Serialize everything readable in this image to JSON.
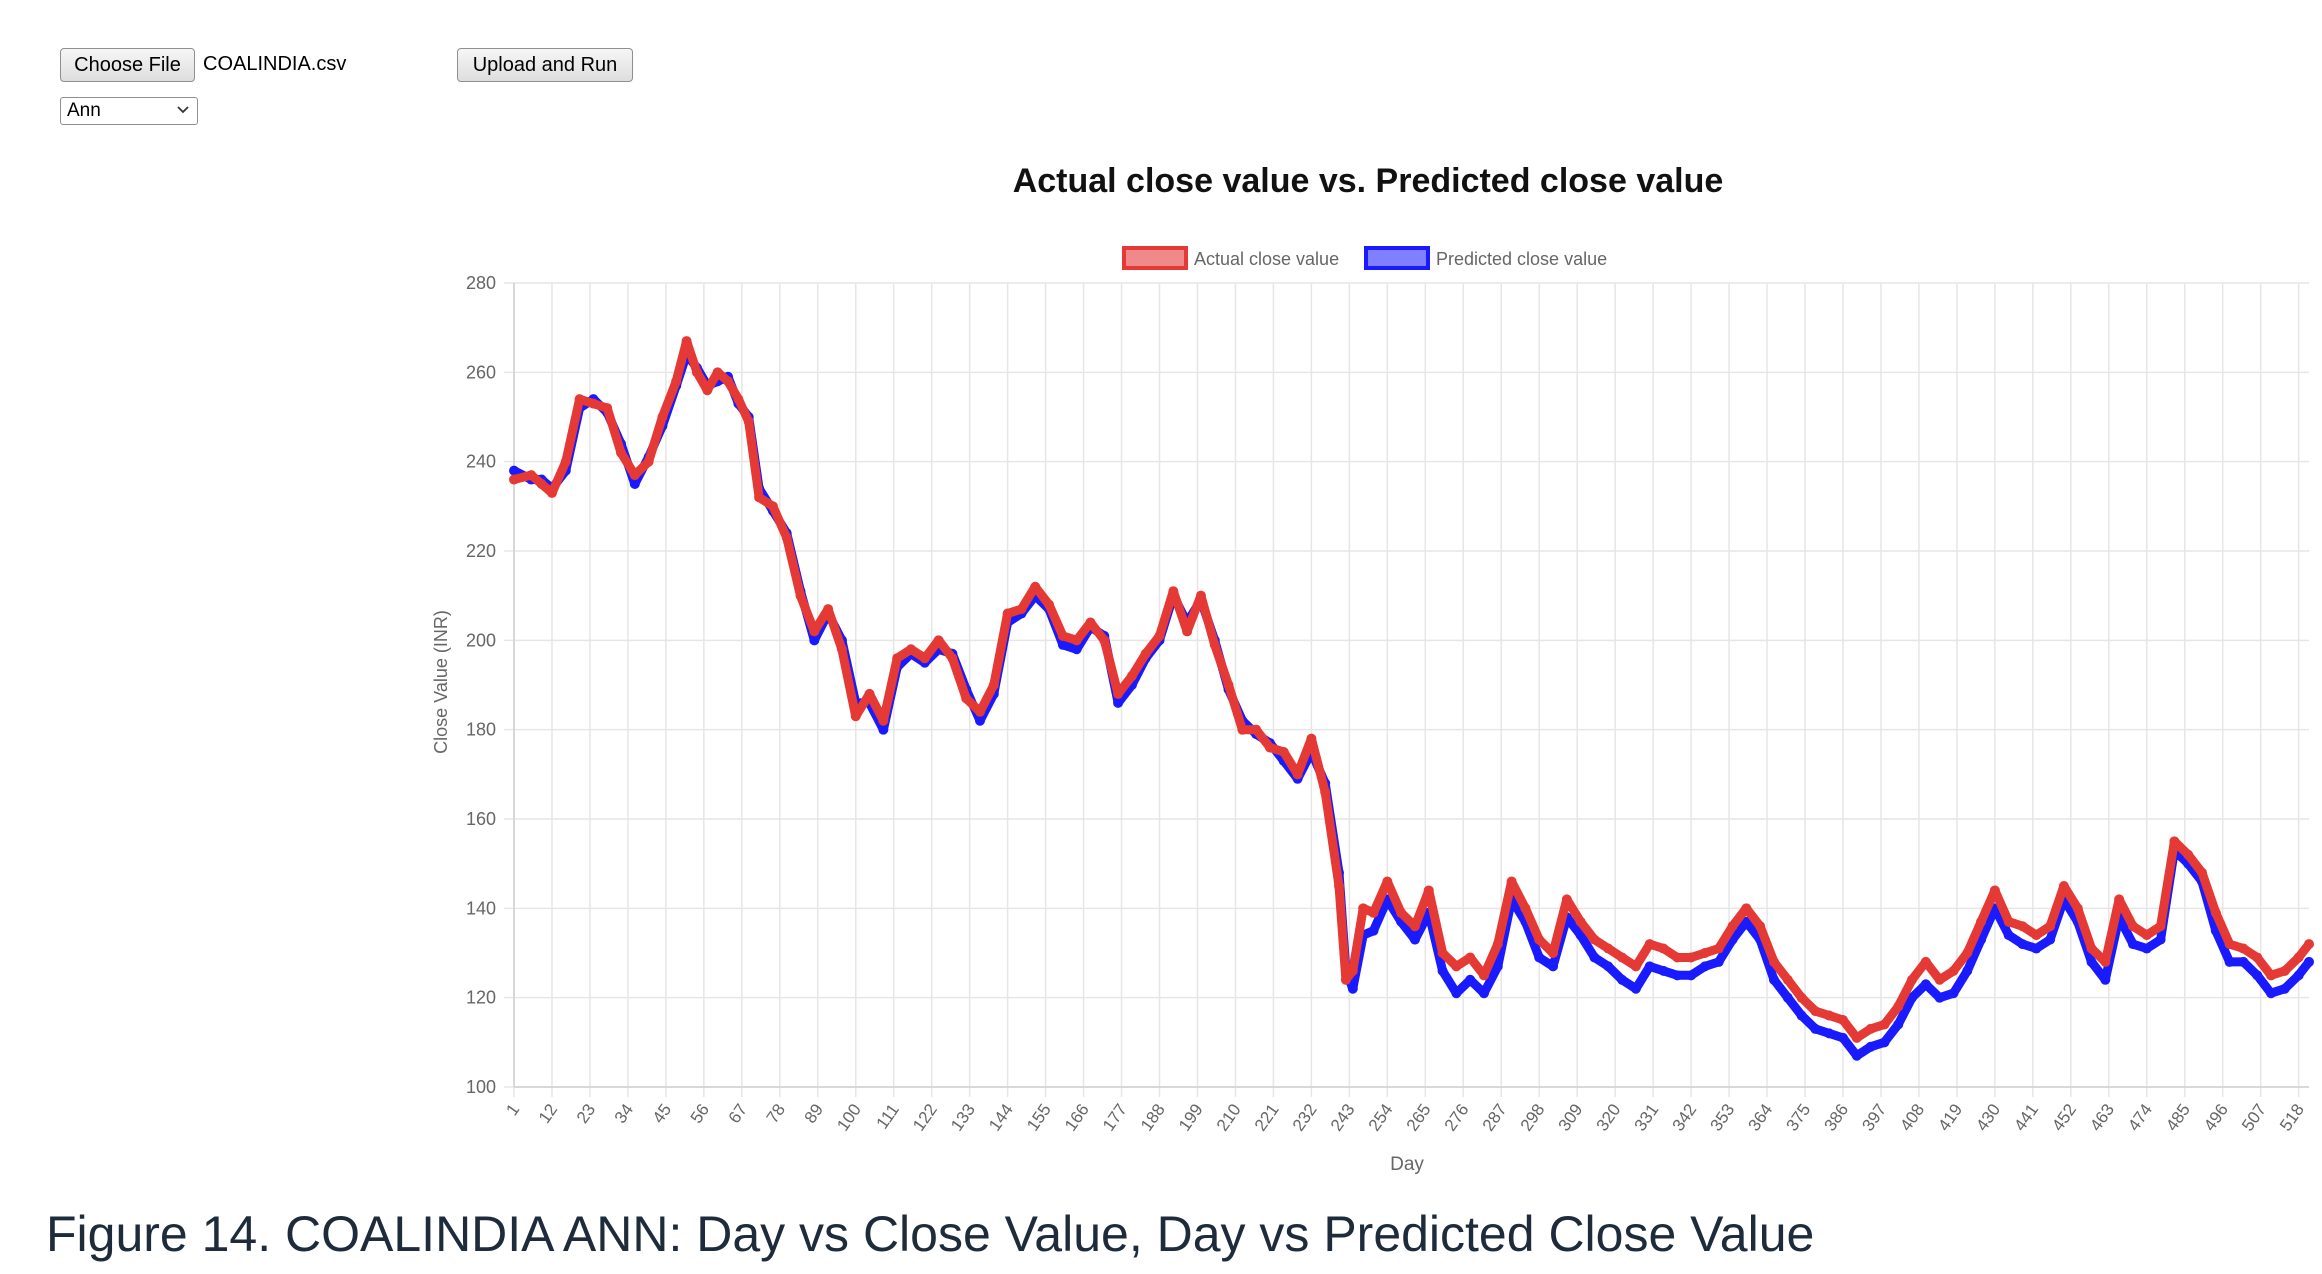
{
  "controls": {
    "choose_file_label": "Choose File",
    "file_name": "COALINDIA.csv",
    "upload_label": "Upload and Run",
    "model_selected": "Ann"
  },
  "caption": "Figure 14. COALINDIA ANN: Day vs Close Value, Day vs Predicted Close Value",
  "colors": {
    "actual_line": "#e53935",
    "actual_fill": "#f08a8a",
    "predicted_line": "#1a1aff",
    "predicted_fill": "#7f7fff",
    "grid": "#e6e6e6",
    "axis_text": "#666666"
  },
  "chart_data": {
    "type": "line",
    "title": "Actual close value vs. Predicted close value",
    "xlabel": "Day",
    "ylabel": "Close Value (INR)",
    "ylim": [
      100,
      280
    ],
    "yticks": [
      100,
      120,
      140,
      160,
      180,
      200,
      220,
      240,
      260,
      280
    ],
    "xlim": [
      1,
      521
    ],
    "xticks": [
      1,
      12,
      23,
      34,
      45,
      56,
      67,
      78,
      89,
      100,
      111,
      122,
      133,
      144,
      155,
      166,
      177,
      188,
      199,
      210,
      221,
      232,
      243,
      254,
      265,
      276,
      287,
      298,
      309,
      320,
      331,
      342,
      353,
      364,
      375,
      386,
      397,
      408,
      419,
      430,
      441,
      452,
      463,
      474,
      485,
      496,
      507,
      518
    ],
    "grid": true,
    "legend_position": "top-center",
    "series": [
      {
        "name": "Actual close value",
        "x": [
          1,
          6,
          9,
          12,
          16,
          20,
          24,
          28,
          32,
          36,
          40,
          44,
          48,
          51,
          54,
          57,
          60,
          63,
          66,
          69,
          72,
          76,
          80,
          84,
          88,
          92,
          96,
          100,
          104,
          108,
          112,
          116,
          120,
          124,
          128,
          132,
          136,
          140,
          144,
          148,
          152,
          156,
          160,
          164,
          168,
          172,
          176,
          180,
          184,
          188,
          192,
          196,
          200,
          204,
          208,
          212,
          216,
          220,
          224,
          228,
          232,
          236,
          240,
          242,
          244,
          247,
          250,
          254,
          258,
          262,
          266,
          270,
          274,
          278,
          282,
          286,
          290,
          294,
          298,
          302,
          306,
          310,
          314,
          318,
          322,
          326,
          330,
          334,
          338,
          342,
          346,
          350,
          354,
          358,
          362,
          366,
          370,
          374,
          378,
          382,
          386,
          390,
          394,
          398,
          402,
          406,
          410,
          414,
          418,
          422,
          426,
          430,
          434,
          438,
          442,
          446,
          450,
          454,
          458,
          462,
          466,
          470,
          474,
          478,
          482,
          486,
          490,
          494,
          498,
          502,
          506,
          510,
          514,
          518,
          521
        ],
        "values": [
          236,
          237,
          235,
          233,
          240,
          254,
          253,
          252,
          242,
          237,
          240,
          250,
          258,
          267,
          260,
          256,
          260,
          258,
          254,
          249,
          232,
          230,
          223,
          210,
          202,
          207,
          198,
          183,
          188,
          182,
          196,
          198,
          196,
          200,
          196,
          187,
          184,
          190,
          206,
          207,
          212,
          208,
          201,
          200,
          204,
          200,
          188,
          192,
          197,
          201,
          211,
          202,
          210,
          199,
          190,
          180,
          180,
          176,
          175,
          170,
          178,
          166,
          145,
          124,
          126,
          140,
          139,
          146,
          139,
          136,
          144,
          130,
          127,
          129,
          125,
          132,
          146,
          140,
          133,
          130,
          142,
          137,
          133,
          131,
          129,
          127,
          132,
          131,
          129,
          129,
          130,
          131,
          136,
          140,
          136,
          128,
          124,
          120,
          117,
          116,
          115,
          111,
          113,
          114,
          118,
          124,
          128,
          124,
          126,
          130,
          137,
          144,
          137,
          136,
          134,
          136,
          145,
          140,
          131,
          128,
          142,
          136,
          134,
          136,
          155,
          152,
          148,
          139,
          132,
          131,
          129,
          125,
          126,
          129,
          132
        ]
      },
      {
        "name": "Predicted close value",
        "x": [
          1,
          6,
          9,
          12,
          16,
          20,
          24,
          28,
          32,
          36,
          40,
          44,
          48,
          51,
          54,
          57,
          60,
          63,
          66,
          69,
          72,
          76,
          80,
          84,
          88,
          92,
          96,
          100,
          104,
          108,
          112,
          116,
          120,
          124,
          128,
          132,
          136,
          140,
          144,
          148,
          152,
          156,
          160,
          164,
          168,
          172,
          176,
          180,
          184,
          188,
          192,
          196,
          200,
          204,
          208,
          212,
          216,
          220,
          224,
          228,
          232,
          236,
          240,
          242,
          244,
          247,
          250,
          254,
          258,
          262,
          266,
          270,
          274,
          278,
          282,
          286,
          290,
          294,
          298,
          302,
          306,
          310,
          314,
          318,
          322,
          326,
          330,
          334,
          338,
          342,
          346,
          350,
          354,
          358,
          362,
          366,
          370,
          374,
          378,
          382,
          386,
          390,
          394,
          398,
          402,
          406,
          410,
          414,
          418,
          422,
          426,
          430,
          434,
          438,
          442,
          446,
          450,
          454,
          458,
          462,
          466,
          470,
          474,
          478,
          482,
          486,
          490,
          494,
          498,
          502,
          506,
          510,
          514,
          518,
          521
        ],
        "values": [
          238,
          236,
          236,
          234,
          238,
          252,
          254,
          251,
          244,
          235,
          241,
          248,
          257,
          264,
          261,
          257,
          258,
          259,
          253,
          250,
          234,
          229,
          224,
          211,
          200,
          206,
          200,
          186,
          186,
          180,
          194,
          197,
          195,
          198,
          197,
          189,
          182,
          188,
          204,
          206,
          210,
          207,
          199,
          198,
          203,
          201,
          186,
          190,
          196,
          200,
          210,
          204,
          209,
          200,
          189,
          182,
          179,
          177,
          173,
          169,
          175,
          168,
          148,
          126,
          122,
          134,
          135,
          142,
          137,
          133,
          139,
          126,
          121,
          124,
          121,
          127,
          142,
          137,
          129,
          127,
          138,
          134,
          129,
          127,
          124,
          122,
          127,
          126,
          125,
          125,
          127,
          128,
          133,
          137,
          133,
          124,
          120,
          116,
          113,
          112,
          111,
          107,
          109,
          110,
          114,
          120,
          123,
          120,
          121,
          126,
          133,
          140,
          134,
          132,
          131,
          133,
          142,
          137,
          128,
          124,
          138,
          132,
          131,
          133,
          153,
          150,
          146,
          135,
          128,
          128,
          125,
          121,
          122,
          125,
          128
        ]
      }
    ]
  }
}
